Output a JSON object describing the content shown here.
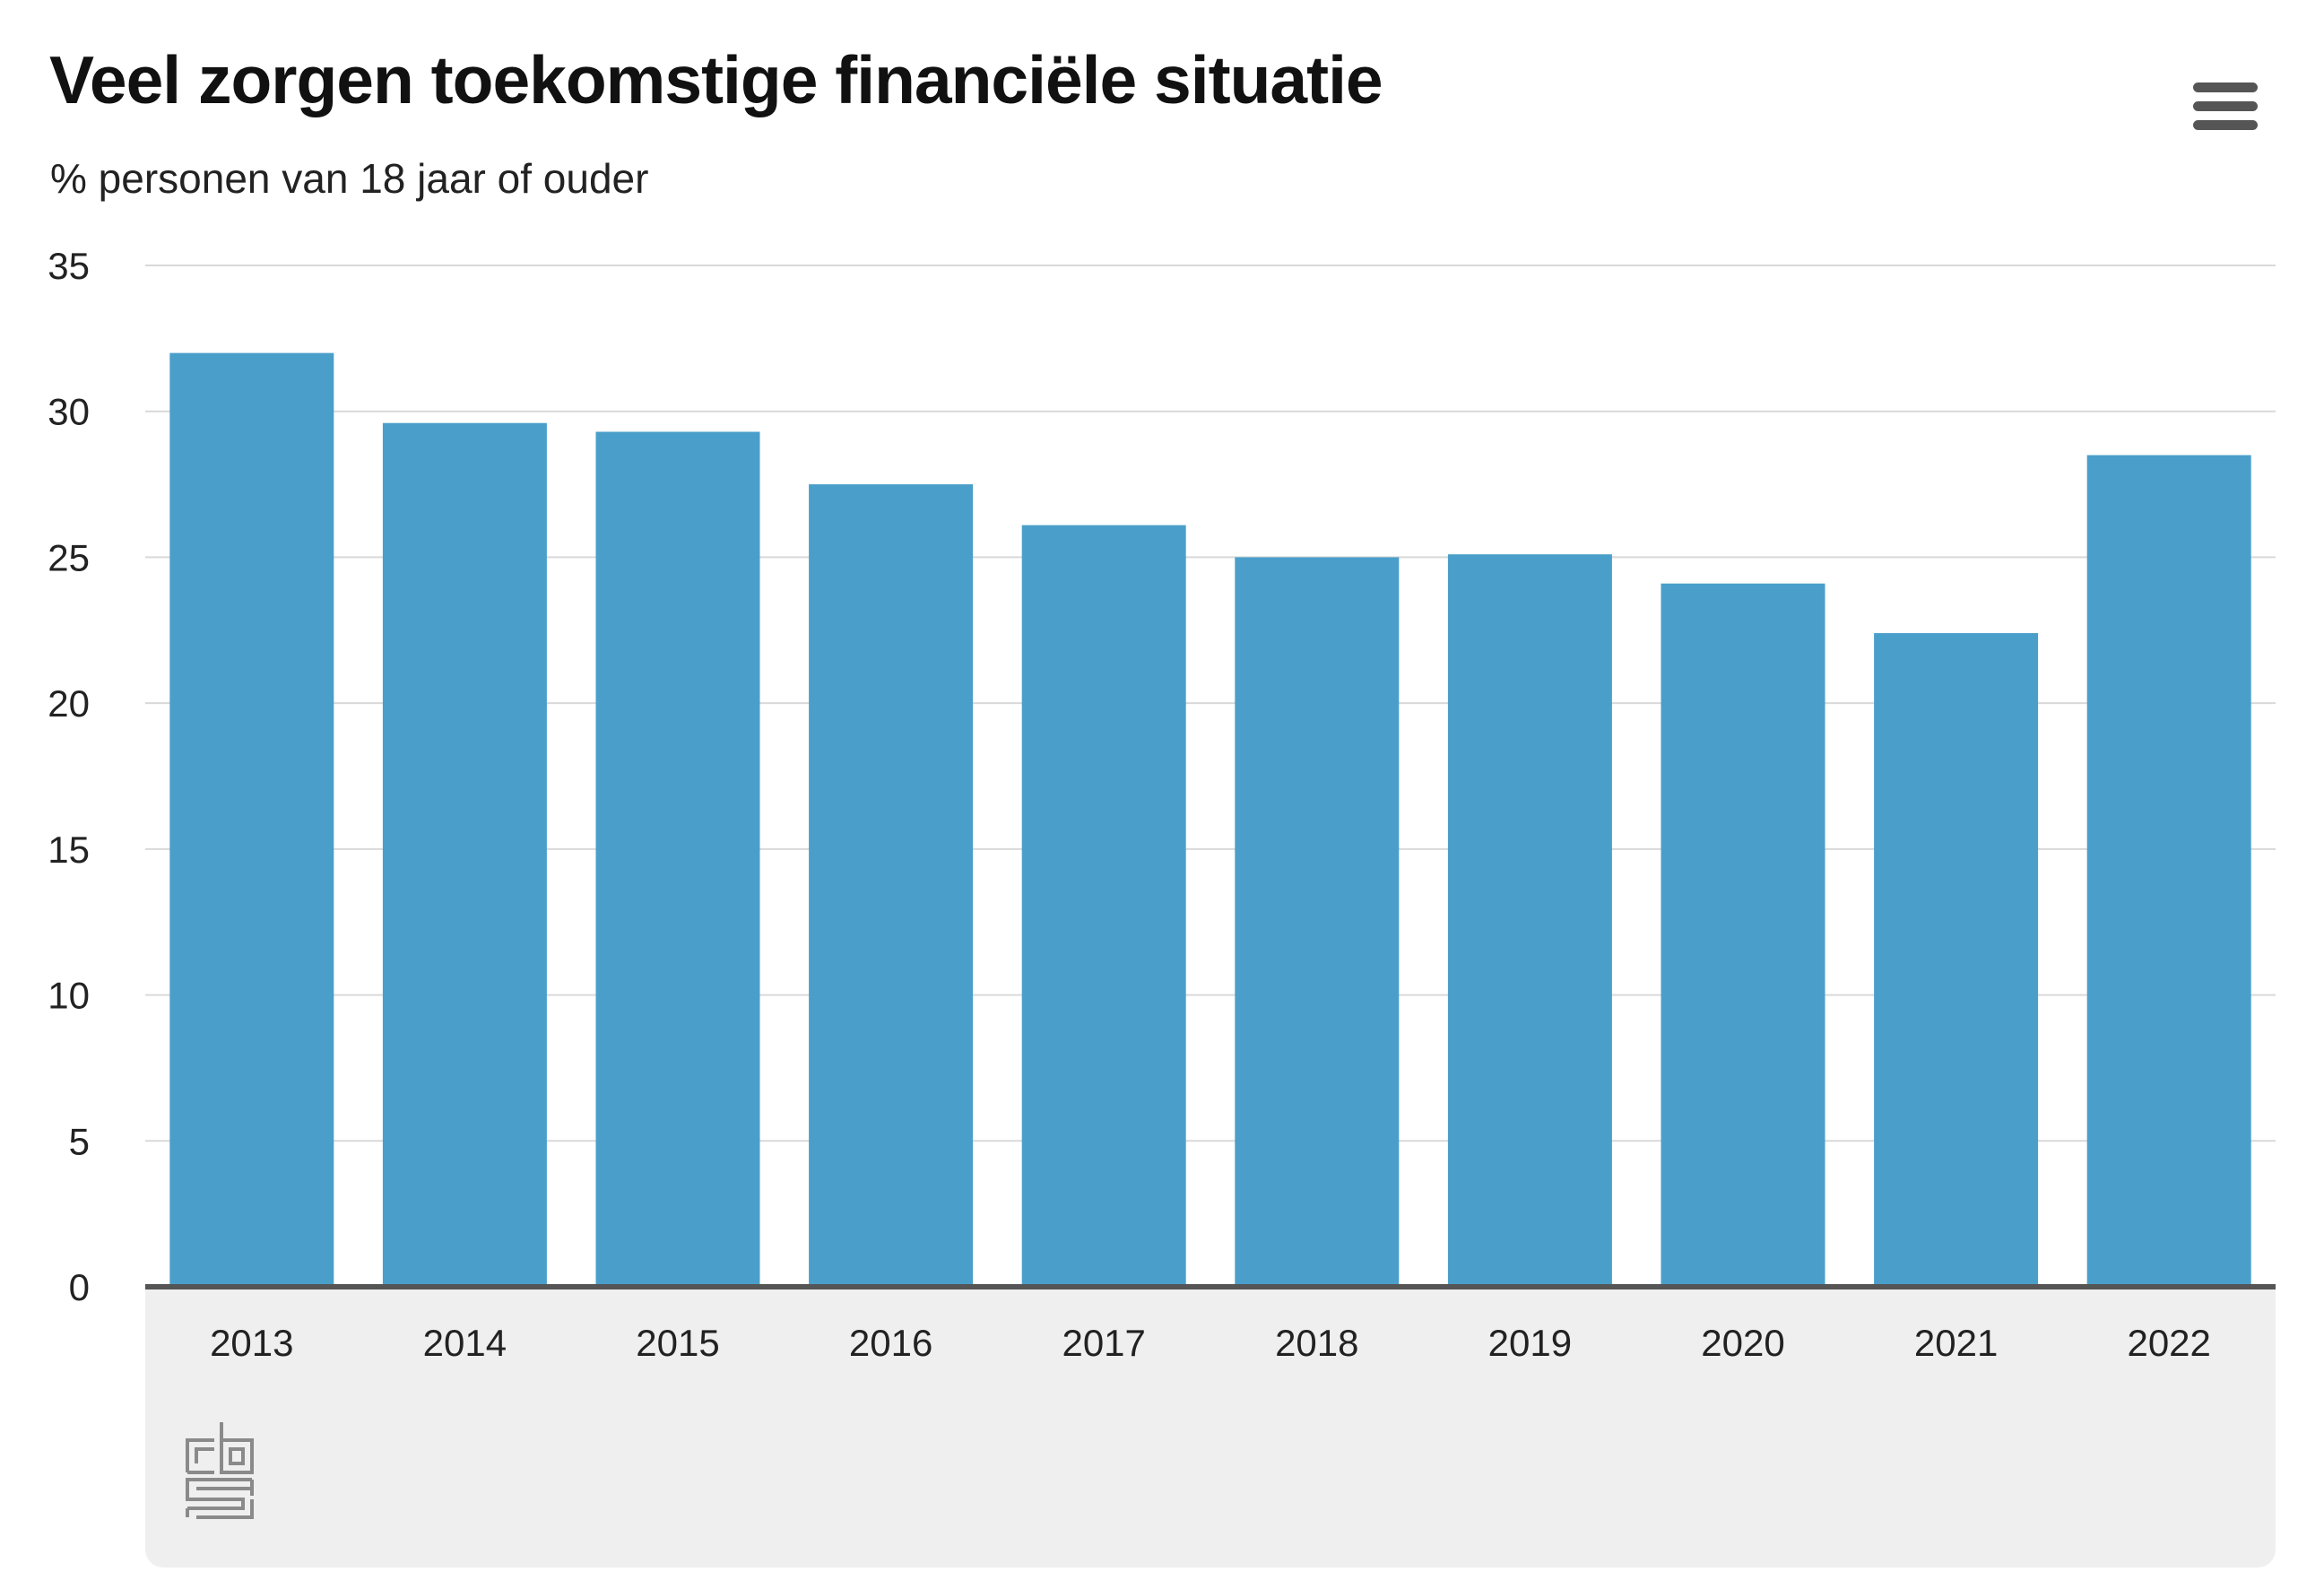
{
  "chart_data": {
    "type": "bar",
    "title": "Veel zorgen toekomstige financiële situatie",
    "subtitle": "% personen van 18 jaar of ouder",
    "categories": [
      "2013",
      "2014",
      "2015",
      "2016",
      "2017",
      "2018",
      "2019",
      "2020",
      "2021",
      "2022"
    ],
    "values": [
      32.0,
      29.6,
      29.3,
      27.5,
      26.1,
      25.0,
      25.1,
      24.1,
      22.4,
      28.5
    ],
    "ylim": [
      0,
      35
    ],
    "yticks": [
      "0",
      "5",
      "10",
      "15",
      "20",
      "25",
      "30",
      "35"
    ],
    "grid": true,
    "bar_color": "#4a9fca",
    "axis_color": "#555555",
    "gridline_color": "#d9d9d9"
  },
  "icons": {
    "menu": "hamburger-menu-icon",
    "logo": "cbs-logo-icon"
  }
}
